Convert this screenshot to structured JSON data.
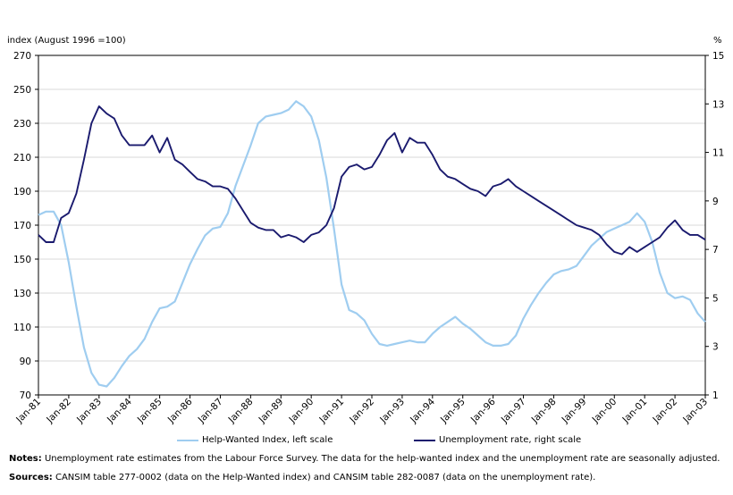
{
  "chart_data": {
    "type": "line",
    "ylabel_left": "index (August 1996 =100)",
    "ylabel_right": "%",
    "ylim_left": [
      70,
      270
    ],
    "yticks_left": [
      70,
      90,
      110,
      130,
      150,
      170,
      190,
      210,
      230,
      250,
      270
    ],
    "ylim_right": [
      1,
      15
    ],
    "yticks_right": [
      1,
      3,
      5,
      7,
      9,
      11,
      13,
      15
    ],
    "xlim": [
      "Jan-81",
      "Jan-03"
    ],
    "x_tick_labels": [
      "Jan-81",
      "Jan-82",
      "Jan-83",
      "Jan-84",
      "Jan-85",
      "Jan-86",
      "Jan-87",
      "Jan-88",
      "Jan-89",
      "Jan-90",
      "Jan-91",
      "Jan-92",
      "Jan-93",
      "Jan-94",
      "Jan-95",
      "Jan-96",
      "Jan-97",
      "Jan-98",
      "Jan-99",
      "Jan-00",
      "Jan-01",
      "Jan-02",
      "Jan-03"
    ],
    "grid": "horizontal",
    "legend_placement": "bottom",
    "series": [
      {
        "name": "Help-Wanted Index, left scale",
        "axis": "left",
        "color": "#9fcdf0",
        "points": [
          [
            "Jan-81",
            176
          ],
          [
            "Apr-81",
            178
          ],
          [
            "Jul-81",
            178
          ],
          [
            "Oct-81",
            170
          ],
          [
            "Jan-82",
            148
          ],
          [
            "Apr-82",
            122
          ],
          [
            "Jul-82",
            98
          ],
          [
            "Oct-82",
            83
          ],
          [
            "Jan-83",
            76
          ],
          [
            "Apr-83",
            75
          ],
          [
            "Jul-83",
            80
          ],
          [
            "Oct-83",
            87
          ],
          [
            "Jan-84",
            93
          ],
          [
            "Apr-84",
            97
          ],
          [
            "Jul-84",
            103
          ],
          [
            "Oct-84",
            113
          ],
          [
            "Jan-85",
            121
          ],
          [
            "Apr-85",
            122
          ],
          [
            "Jul-85",
            125
          ],
          [
            "Oct-85",
            136
          ],
          [
            "Jan-86",
            147
          ],
          [
            "Apr-86",
            156
          ],
          [
            "Jul-86",
            164
          ],
          [
            "Oct-86",
            168
          ],
          [
            "Jan-87",
            169
          ],
          [
            "Apr-87",
            177
          ],
          [
            "Jul-87",
            193
          ],
          [
            "Oct-87",
            205
          ],
          [
            "Jan-88",
            217
          ],
          [
            "Apr-88",
            230
          ],
          [
            "Jul-88",
            234
          ],
          [
            "Oct-88",
            235
          ],
          [
            "Jan-89",
            236
          ],
          [
            "Apr-89",
            238
          ],
          [
            "Jul-89",
            243
          ],
          [
            "Oct-89",
            240
          ],
          [
            "Jan-90",
            234
          ],
          [
            "Apr-90",
            220
          ],
          [
            "Jul-90",
            198
          ],
          [
            "Oct-90",
            168
          ],
          [
            "Jan-91",
            135
          ],
          [
            "Apr-91",
            120
          ],
          [
            "Jul-91",
            118
          ],
          [
            "Oct-91",
            114
          ],
          [
            "Jan-92",
            106
          ],
          [
            "Apr-92",
            100
          ],
          [
            "Jul-92",
            99
          ],
          [
            "Oct-92",
            100
          ],
          [
            "Jan-93",
            101
          ],
          [
            "Apr-93",
            102
          ],
          [
            "Jul-93",
            101
          ],
          [
            "Oct-93",
            101
          ],
          [
            "Jan-94",
            106
          ],
          [
            "Apr-94",
            110
          ],
          [
            "Jul-94",
            113
          ],
          [
            "Oct-94",
            116
          ],
          [
            "Jan-95",
            112
          ],
          [
            "Apr-95",
            109
          ],
          [
            "Jul-95",
            105
          ],
          [
            "Oct-95",
            101
          ],
          [
            "Jan-96",
            99
          ],
          [
            "Apr-96",
            99
          ],
          [
            "Jul-96",
            100
          ],
          [
            "Oct-96",
            105
          ],
          [
            "Jan-97",
            115
          ],
          [
            "Apr-97",
            123
          ],
          [
            "Jul-97",
            130
          ],
          [
            "Oct-97",
            136
          ],
          [
            "Jan-98",
            141
          ],
          [
            "Apr-98",
            143
          ],
          [
            "Jul-98",
            144
          ],
          [
            "Oct-98",
            146
          ],
          [
            "Jan-99",
            152
          ],
          [
            "Apr-99",
            158
          ],
          [
            "Jul-99",
            162
          ],
          [
            "Oct-99",
            166
          ],
          [
            "Jan-00",
            168
          ],
          [
            "Apr-00",
            170
          ],
          [
            "Jul-00",
            172
          ],
          [
            "Oct-00",
            177
          ],
          [
            "Jan-01",
            172
          ],
          [
            "Apr-01",
            160
          ],
          [
            "Jul-01",
            142
          ],
          [
            "Oct-01",
            130
          ],
          [
            "Jan-02",
            127
          ],
          [
            "Apr-02",
            128
          ],
          [
            "Jul-02",
            126
          ],
          [
            "Oct-02",
            118
          ],
          [
            "Jan-03",
            113
          ]
        ]
      },
      {
        "name": "Unemployment rate, right scale",
        "axis": "right",
        "color": "#1a1a6e",
        "points": [
          [
            "Jan-81",
            7.6
          ],
          [
            "Apr-81",
            7.3
          ],
          [
            "Jul-81",
            7.3
          ],
          [
            "Oct-81",
            8.3
          ],
          [
            "Jan-82",
            8.5
          ],
          [
            "Apr-82",
            9.3
          ],
          [
            "Jul-82",
            10.7
          ],
          [
            "Oct-82",
            12.2
          ],
          [
            "Jan-83",
            12.9
          ],
          [
            "Apr-83",
            12.6
          ],
          [
            "Jul-83",
            12.4
          ],
          [
            "Oct-83",
            11.7
          ],
          [
            "Jan-84",
            11.3
          ],
          [
            "Apr-84",
            11.3
          ],
          [
            "Jul-84",
            11.3
          ],
          [
            "Oct-84",
            11.7
          ],
          [
            "Jan-85",
            11.0
          ],
          [
            "Apr-85",
            11.6
          ],
          [
            "Jul-85",
            10.7
          ],
          [
            "Oct-85",
            10.5
          ],
          [
            "Jan-86",
            10.2
          ],
          [
            "Apr-86",
            9.9
          ],
          [
            "Jul-86",
            9.8
          ],
          [
            "Oct-86",
            9.6
          ],
          [
            "Jan-87",
            9.6
          ],
          [
            "Apr-87",
            9.5
          ],
          [
            "Jul-87",
            9.1
          ],
          [
            "Oct-87",
            8.6
          ],
          [
            "Jan-88",
            8.1
          ],
          [
            "Apr-88",
            7.9
          ],
          [
            "Jul-88",
            7.8
          ],
          [
            "Oct-88",
            7.8
          ],
          [
            "Jan-89",
            7.5
          ],
          [
            "Apr-89",
            7.6
          ],
          [
            "Jul-89",
            7.5
          ],
          [
            "Oct-89",
            7.3
          ],
          [
            "Jan-90",
            7.6
          ],
          [
            "Apr-90",
            7.7
          ],
          [
            "Jul-90",
            8.0
          ],
          [
            "Oct-90",
            8.7
          ],
          [
            "Jan-91",
            10.0
          ],
          [
            "Apr-91",
            10.4
          ],
          [
            "Jul-91",
            10.5
          ],
          [
            "Oct-91",
            10.3
          ],
          [
            "Jan-92",
            10.4
          ],
          [
            "Apr-92",
            10.9
          ],
          [
            "Jul-92",
            11.5
          ],
          [
            "Oct-92",
            11.8
          ],
          [
            "Jan-93",
            11.0
          ],
          [
            "Apr-93",
            11.6
          ],
          [
            "Jul-93",
            11.4
          ],
          [
            "Oct-93",
            11.4
          ],
          [
            "Jan-94",
            10.9
          ],
          [
            "Apr-94",
            10.3
          ],
          [
            "Jul-94",
            10.0
          ],
          [
            "Oct-94",
            9.9
          ],
          [
            "Jan-95",
            9.7
          ],
          [
            "Apr-95",
            9.5
          ],
          [
            "Jul-95",
            9.4
          ],
          [
            "Oct-95",
            9.2
          ],
          [
            "Jan-96",
            9.6
          ],
          [
            "Apr-96",
            9.7
          ],
          [
            "Jul-96",
            9.9
          ],
          [
            "Oct-96",
            9.6
          ],
          [
            "Jan-97",
            9.4
          ],
          [
            "Apr-97",
            9.2
          ],
          [
            "Jul-97",
            9.0
          ],
          [
            "Oct-97",
            8.8
          ],
          [
            "Jan-98",
            8.6
          ],
          [
            "Apr-98",
            8.4
          ],
          [
            "Jul-98",
            8.2
          ],
          [
            "Oct-98",
            8.0
          ],
          [
            "Jan-99",
            7.9
          ],
          [
            "Apr-99",
            7.8
          ],
          [
            "Jul-99",
            7.6
          ],
          [
            "Oct-99",
            7.2
          ],
          [
            "Jan-00",
            6.9
          ],
          [
            "Apr-00",
            6.8
          ],
          [
            "Jul-00",
            7.1
          ],
          [
            "Oct-00",
            6.9
          ],
          [
            "Jan-01",
            7.1
          ],
          [
            "Apr-01",
            7.3
          ],
          [
            "Jul-01",
            7.5
          ],
          [
            "Oct-01",
            7.9
          ],
          [
            "Jan-02",
            8.2
          ],
          [
            "Apr-02",
            7.8
          ],
          [
            "Jul-02",
            7.6
          ],
          [
            "Oct-02",
            7.6
          ],
          [
            "Jan-03",
            7.4
          ]
        ]
      }
    ]
  },
  "legend": {
    "series_a": "Help-Wanted Index, left scale",
    "series_b": "Unemployment rate, right scale"
  },
  "footer": {
    "notes_label": "Notes:",
    "notes_text": " Unemployment rate estimates from the Labour Force Survey. The data for the help-wanted index and the unemployment rate are seasonally adjusted.",
    "sources_label": "Sources:",
    "sources_text": " CANSIM table 277-0002 (data on the Help-Wanted index) and CANSIM table 282-0087 (data on the unemployment rate)."
  }
}
